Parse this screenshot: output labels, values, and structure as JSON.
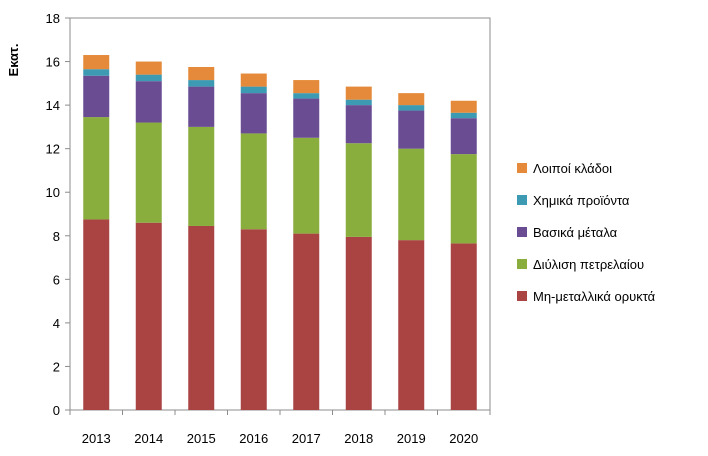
{
  "chart_data": {
    "type": "bar",
    "stacked": true,
    "title": "",
    "xlabel": "",
    "ylabel": "Εκατ.",
    "ylim": [
      0,
      18
    ],
    "yticks": [
      0,
      2,
      4,
      6,
      8,
      10,
      12,
      14,
      16,
      18
    ],
    "grid": false,
    "legend_position": "right",
    "categories": [
      "2013",
      "2014",
      "2015",
      "2016",
      "2017",
      "2018",
      "2019",
      "2020"
    ],
    "series": [
      {
        "name": "Μη-μεταλλικά ορυκτά",
        "color": "#A94442",
        "values": [
          8.75,
          8.6,
          8.45,
          8.3,
          8.1,
          7.95,
          7.8,
          7.65
        ]
      },
      {
        "name": "Διύλιση πετρελαίου",
        "color": "#8AAE3E",
        "values": [
          4.7,
          4.6,
          4.55,
          4.4,
          4.4,
          4.3,
          4.2,
          4.1
        ]
      },
      {
        "name": "Βασικά μέταλα",
        "color": "#6A4C93",
        "values": [
          1.9,
          1.9,
          1.85,
          1.85,
          1.8,
          1.75,
          1.75,
          1.65
        ]
      },
      {
        "name": "Χημικά προϊόντα",
        "color": "#3C9AB2",
        "values": [
          0.3,
          0.3,
          0.3,
          0.3,
          0.25,
          0.25,
          0.25,
          0.25
        ]
      },
      {
        "name": "Λοιποί κλάδοι",
        "color": "#E58A3A",
        "values": [
          0.65,
          0.6,
          0.6,
          0.6,
          0.6,
          0.6,
          0.55,
          0.55
        ]
      }
    ]
  }
}
